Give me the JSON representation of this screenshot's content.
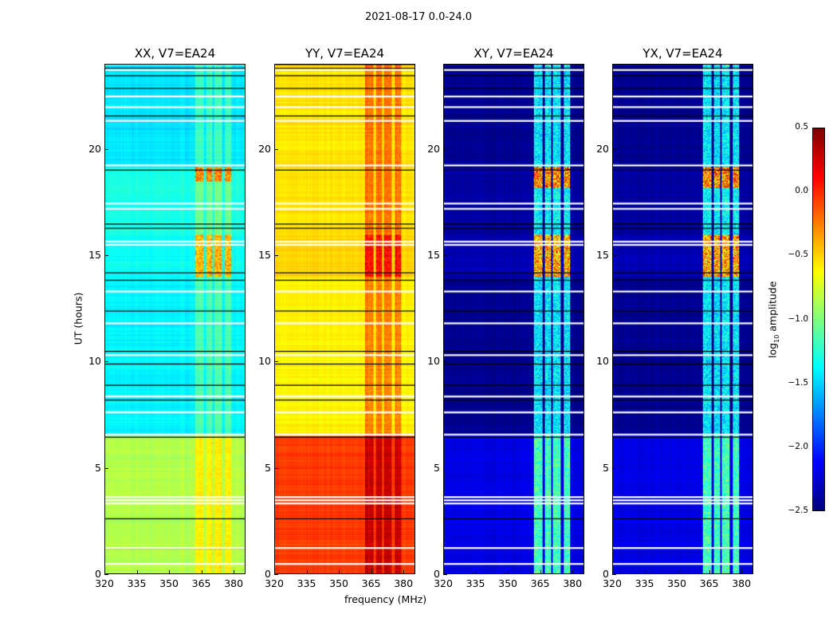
{
  "chart_data": {
    "type": "heatmap",
    "title": "2021-08-17 0.0-24.0",
    "xlabel": "frequency (MHz)",
    "ylabel": "UT (hours)",
    "xlim": [
      320,
      385.5
    ],
    "ylim": [
      0,
      24
    ],
    "xticks": [
      "320",
      "335",
      "350",
      "365",
      "380"
    ],
    "yticks": [
      "0",
      "5",
      "10",
      "15",
      "20"
    ],
    "colormap": "jet",
    "colorbar": {
      "label": "log10 amplitude",
      "label_main": "log",
      "label_sub": "10",
      "label_rest": " amplitude",
      "range": [
        -2.5,
        0.5
      ],
      "ticks": [
        "0.5",
        "0.0",
        "−0.5",
        "−1.0",
        "−1.5",
        "−2.0",
        "−2.5"
      ]
    },
    "rfi_bands_mhz": [
      [
        362,
        366
      ],
      [
        367,
        370
      ],
      [
        371,
        374.5
      ],
      [
        376,
        379
      ]
    ],
    "flagged_hours_white": [
      0.45,
      1.2,
      3.3,
      3.45,
      3.6,
      6.55,
      7.6,
      8.35,
      10.3,
      11.8,
      13.3,
      15.5,
      15.65,
      17.2,
      17.45,
      19.25,
      21.35,
      22.0,
      22.5,
      23.75
    ],
    "gap_hours_black": [
      1.2,
      2.6,
      6.45,
      8.2,
      8.9,
      9.9,
      10.5,
      12.4,
      13.85,
      14.2,
      16.3,
      16.5,
      19.05,
      21.6,
      22.9,
      23.5,
      23.85
    ],
    "panels": [
      {
        "title": "XX, V7=EA24",
        "segments": [
          {
            "from": 0,
            "to": 6.5,
            "base": -0.85
          },
          {
            "from": 6.5,
            "to": 14,
            "base": -1.4
          },
          {
            "from": 14,
            "to": 16,
            "base": -1.35,
            "band_boost": 1.1
          },
          {
            "from": 16,
            "to": 18.5,
            "base": -1.3
          },
          {
            "from": 18.5,
            "to": 19.2,
            "base": -1.3,
            "band_boost": 1.2
          },
          {
            "from": 19.2,
            "to": 24,
            "base": -1.45
          }
        ],
        "band_boost": 0.3
      },
      {
        "title": "YY, V7=EA24",
        "segments": [
          {
            "from": 0,
            "to": 6.5,
            "base": -0.05
          },
          {
            "from": 6.5,
            "to": 14,
            "base": -0.6
          },
          {
            "from": 14,
            "to": 16,
            "base": -0.5,
            "band_boost": 0.7
          },
          {
            "from": 16,
            "to": 24,
            "base": -0.55
          }
        ],
        "band_boost": 0.4
      },
      {
        "title": "XY, V7=EA24",
        "segments": [
          {
            "from": 0,
            "to": 6.5,
            "base": -2.2
          },
          {
            "from": 6.5,
            "to": 14,
            "base": -2.45
          },
          {
            "from": 14,
            "to": 16,
            "base": -2.35,
            "band_boost": 2.3
          },
          {
            "from": 16,
            "to": 18.2,
            "base": -2.4
          },
          {
            "from": 18.2,
            "to": 19.2,
            "base": -2.4,
            "band_boost": 2.5
          },
          {
            "from": 19.2,
            "to": 24,
            "base": -2.45
          }
        ],
        "band_boost": 1.2
      },
      {
        "title": "YX, V7=EA24",
        "segments": [
          {
            "from": 0,
            "to": 6.5,
            "base": -2.2
          },
          {
            "from": 6.5,
            "to": 14,
            "base": -2.45
          },
          {
            "from": 14,
            "to": 16,
            "base": -2.35,
            "band_boost": 2.3
          },
          {
            "from": 16,
            "to": 18.2,
            "base": -2.4
          },
          {
            "from": 18.2,
            "to": 19.2,
            "base": -2.4,
            "band_boost": 2.5
          },
          {
            "from": 19.2,
            "to": 24,
            "base": -2.45
          }
        ],
        "band_boost": 1.2
      }
    ]
  }
}
